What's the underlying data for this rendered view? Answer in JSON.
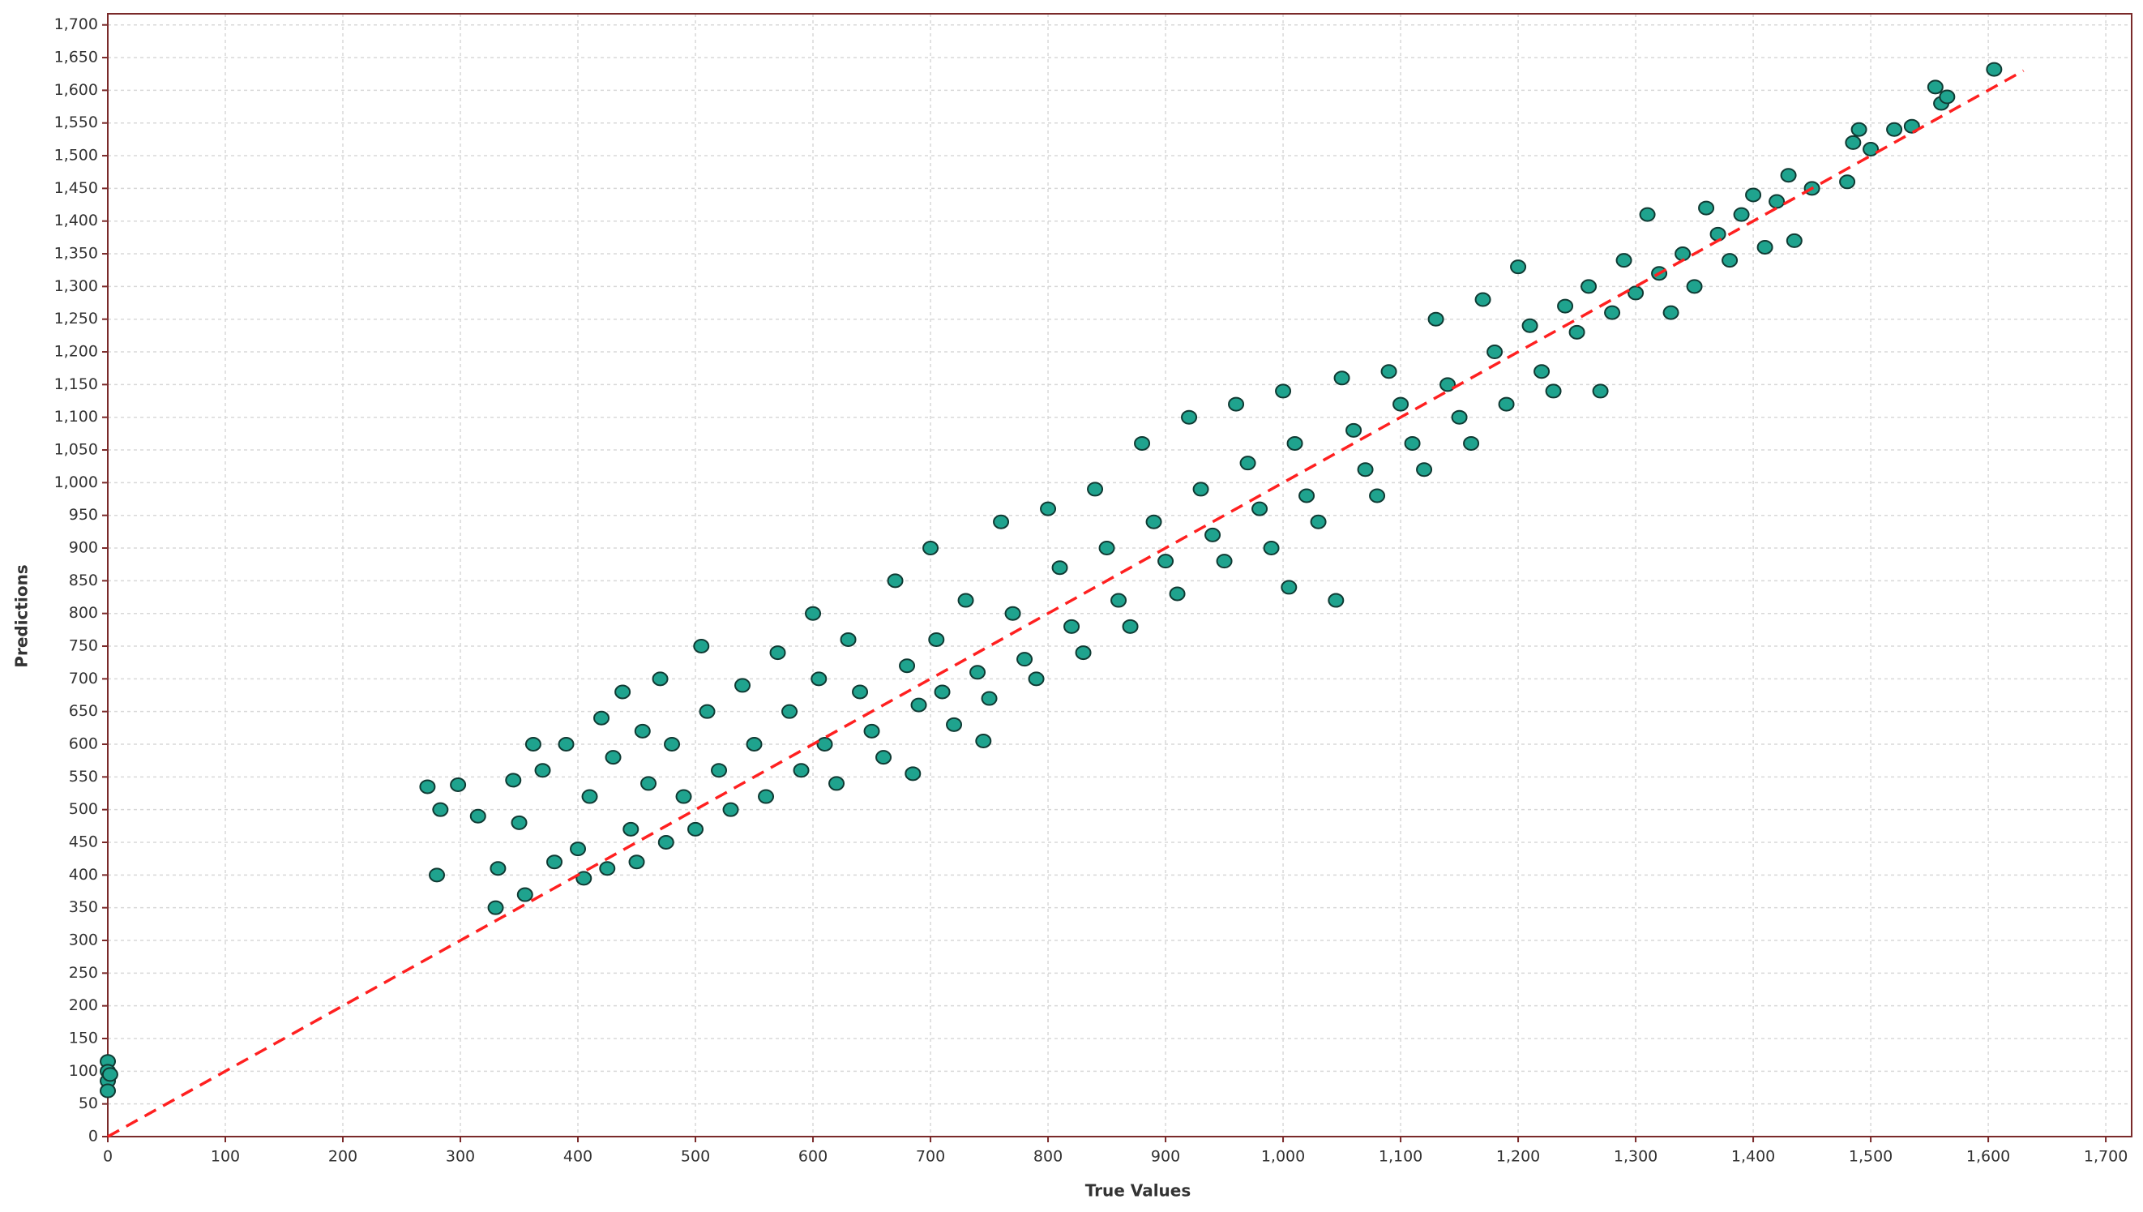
{
  "chart_data": {
    "type": "scatter",
    "xlabel": "True Values",
    "ylabel": "Predictions",
    "xlim": [
      0,
      1722
    ],
    "ylim": [
      0,
      1717
    ],
    "xticks": [
      0,
      100,
      200,
      300,
      400,
      500,
      600,
      700,
      800,
      900,
      {
        "value": 1000,
        "label": "1,000"
      },
      {
        "value": 1100,
        "label": "1,100"
      },
      {
        "value": 1200,
        "label": "1,200"
      },
      {
        "value": 1300,
        "label": "1,300"
      },
      {
        "value": 1400,
        "label": "1,400"
      },
      {
        "value": 1500,
        "label": "1,500"
      },
      {
        "value": 1600,
        "label": "1,600"
      },
      {
        "value": 1700,
        "label": "1,700"
      }
    ],
    "yticks": [
      0,
      50,
      100,
      150,
      200,
      250,
      300,
      350,
      400,
      450,
      500,
      550,
      600,
      650,
      700,
      750,
      800,
      850,
      900,
      950,
      {
        "value": 1000,
        "label": "1,000"
      },
      {
        "value": 1050,
        "label": "1,050"
      },
      {
        "value": 1100,
        "label": "1,100"
      },
      {
        "value": 1150,
        "label": "1,150"
      },
      {
        "value": 1200,
        "label": "1,200"
      },
      {
        "value": 1250,
        "label": "1,250"
      },
      {
        "value": 1300,
        "label": "1,300"
      },
      {
        "value": 1350,
        "label": "1,350"
      },
      {
        "value": 1400,
        "label": "1,400"
      },
      {
        "value": 1450,
        "label": "1,450"
      },
      {
        "value": 1500,
        "label": "1,500"
      },
      {
        "value": 1550,
        "label": "1,550"
      },
      {
        "value": 1600,
        "label": "1,600"
      },
      {
        "value": 1650,
        "label": "1,650"
      },
      {
        "value": 1700,
        "label": "1,700"
      }
    ],
    "grid": true,
    "color": "#1fa38e",
    "x": [
      0,
      0,
      0,
      0,
      2,
      272,
      280,
      283,
      298,
      315,
      330,
      332,
      345,
      350,
      355,
      362,
      370,
      380,
      390,
      400,
      405,
      410,
      420,
      425,
      430,
      438,
      445,
      450,
      455,
      460,
      470,
      475,
      480,
      490,
      500,
      505,
      510,
      520,
      530,
      540,
      550,
      560,
      570,
      580,
      590,
      600,
      605,
      610,
      620,
      630,
      640,
      650,
      660,
      670,
      680,
      685,
      690,
      700,
      705,
      710,
      720,
      730,
      740,
      745,
      750,
      760,
      770,
      780,
      790,
      800,
      810,
      820,
      830,
      840,
      850,
      860,
      870,
      880,
      890,
      900,
      910,
      920,
      930,
      940,
      950,
      960,
      970,
      980,
      990,
      1000,
      1005,
      1010,
      1020,
      1030,
      1045,
      1050,
      1060,
      1070,
      1080,
      1090,
      1100,
      1110,
      1120,
      1130,
      1140,
      1150,
      1160,
      1170,
      1180,
      1190,
      1200,
      1210,
      1220,
      1230,
      1240,
      1250,
      1260,
      1270,
      1280,
      1290,
      1300,
      1310,
      1320,
      1330,
      1340,
      1350,
      1360,
      1370,
      1380,
      1390,
      1400,
      1410,
      1420,
      1430,
      1435,
      1450,
      1480,
      1485,
      1490,
      1500,
      1520,
      1535,
      1555,
      1560,
      1565,
      1605
    ],
    "values": [
      115,
      100,
      85,
      70,
      95,
      535,
      400,
      500,
      538,
      490,
      350,
      410,
      545,
      480,
      370,
      600,
      560,
      420,
      600,
      440,
      395,
      520,
      640,
      410,
      580,
      680,
      470,
      420,
      620,
      540,
      700,
      450,
      600,
      520,
      470,
      750,
      650,
      560,
      500,
      690,
      600,
      520,
      740,
      650,
      560,
      800,
      700,
      600,
      540,
      760,
      680,
      620,
      580,
      850,
      720,
      555,
      660,
      900,
      760,
      680,
      630,
      820,
      710,
      605,
      670,
      940,
      800,
      730,
      700,
      960,
      870,
      780,
      740,
      990,
      900,
      820,
      780,
      1060,
      940,
      880,
      830,
      1100,
      990,
      920,
      880,
      1120,
      1030,
      960,
      900,
      1140,
      840,
      1060,
      980,
      940,
      820,
      1160,
      1080,
      1020,
      980,
      1170,
      1120,
      1060,
      1020,
      1250,
      1150,
      1100,
      1060,
      1280,
      1200,
      1120,
      1330,
      1240,
      1170,
      1140,
      1270,
      1230,
      1300,
      1140,
      1260,
      1340,
      1290,
      1410,
      1320,
      1260,
      1350,
      1300,
      1420,
      1380,
      1340,
      1410,
      1440,
      1360,
      1430,
      1470,
      1370,
      1450,
      1460,
      1520,
      1540,
      1510,
      1540,
      1545,
      1605,
      1580,
      1590,
      1632
    ],
    "reference_line": {
      "x": [
        0,
        1630
      ],
      "values": [
        0,
        1630
      ],
      "color": "#ff2020"
    }
  }
}
